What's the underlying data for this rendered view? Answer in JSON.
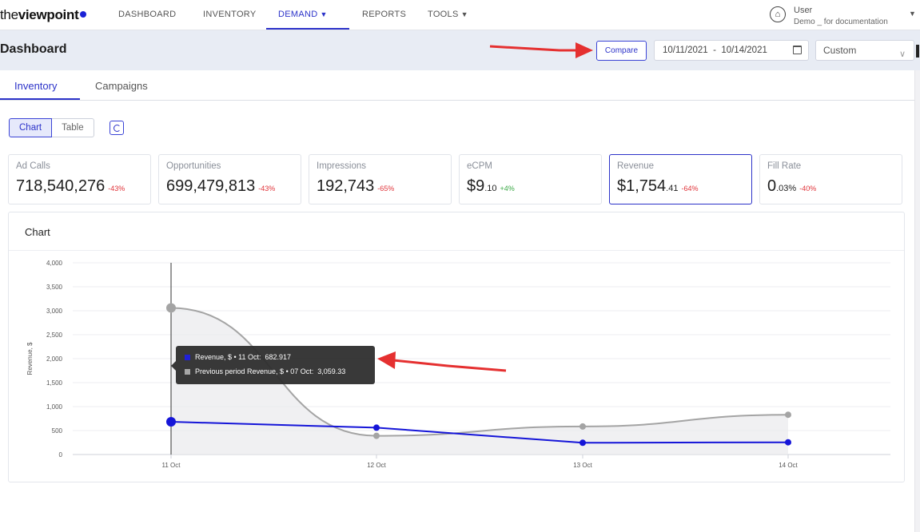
{
  "logo": {
    "light": "the",
    "bold": "viewpoint"
  },
  "nav": {
    "items": [
      {
        "label": "DASHBOARD",
        "dropdown": false
      },
      {
        "label": "INVENTORY",
        "dropdown": false
      },
      {
        "label": "DEMAND",
        "dropdown": true
      },
      {
        "label": "REPORTS",
        "dropdown": false
      },
      {
        "label": "TOOLS",
        "dropdown": true
      }
    ],
    "active": "DEMAND"
  },
  "user": {
    "name": "User",
    "org": "Demo _ for documentation",
    "icon": "home-icon"
  },
  "header": {
    "title": "Dashboard",
    "compare_label": "Compare",
    "date_range": "10/11/2021  -  10/14/2021",
    "range_select": "Custom"
  },
  "tabs": [
    {
      "label": "Inventory",
      "active": true
    },
    {
      "label": "Campaigns",
      "active": false
    }
  ],
  "view_toggle": {
    "chart": "Chart",
    "table": "Table",
    "selected": "Chart"
  },
  "metrics": [
    {
      "label": "Ad Calls",
      "value": "718,540,276",
      "cents": "",
      "delta": "-43%",
      "trend": "neg"
    },
    {
      "label": "Opportunities",
      "value": "699,479,813",
      "cents": "",
      "delta": "-43%",
      "trend": "neg"
    },
    {
      "label": "Impressions",
      "value": "192,743",
      "cents": "",
      "delta": "-65%",
      "trend": "neg"
    },
    {
      "label": "eCPM",
      "value": "$9",
      "cents": ".10",
      "delta": "+4%",
      "trend": "pos"
    },
    {
      "label": "Revenue",
      "value": "$1,754",
      "cents": ".41",
      "delta": "-64%",
      "trend": "neg",
      "selected": true
    },
    {
      "label": "Fill Rate",
      "value": "0",
      "cents": ".03%",
      "delta": "-40%",
      "trend": "neg"
    }
  ],
  "chart_panel": {
    "title": "Chart"
  },
  "chart_data": {
    "type": "line",
    "categories": [
      "11 Oct",
      "12 Oct",
      "13 Oct",
      "14 Oct"
    ],
    "ylabel": "Revenue, $",
    "ylim": [
      0,
      4000
    ],
    "yticks": [
      "0",
      "500",
      "1,000",
      "1,500",
      "2,000",
      "2,500",
      "3,000",
      "3,500",
      "4,000"
    ],
    "ytick_values": [
      0,
      500,
      1000,
      1500,
      2000,
      2500,
      3000,
      3500,
      4000
    ],
    "grid": true,
    "series": [
      {
        "name": "Revenue, $",
        "values": [
          682.917,
          560,
          245,
          255
        ],
        "color": "#1515d8"
      },
      {
        "name": "Previous period Revenue, $",
        "values": [
          3059.33,
          390,
          585,
          830
        ],
        "color": "#a4a4a4"
      }
    ],
    "hover_index": 0
  },
  "tooltip": {
    "row1": "Revenue, $ • 11 Oct:  682.917",
    "row2": "Previous period Revenue, $ • 07 Oct:  3,059.33",
    "color1": "#1515d8",
    "color2": "#a4a4a4"
  },
  "colors": {
    "accent": "#2c33c9",
    "negative": "#e0343a",
    "positive": "#3aa845",
    "annotation": "#e53030"
  }
}
